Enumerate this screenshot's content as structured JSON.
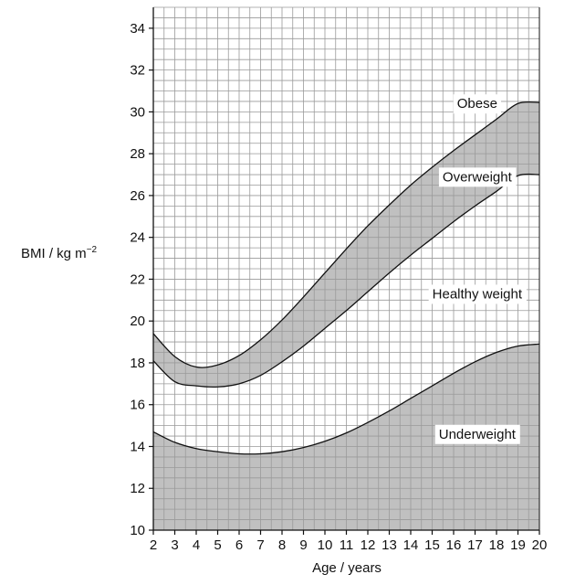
{
  "chart_data": {
    "type": "area",
    "xlabel": "Age / years",
    "ylabel": "BMI / kg m",
    "ylabel_exponent": "−2",
    "xlim": [
      2,
      20
    ],
    "ylim": [
      10,
      35
    ],
    "x_ticks": [
      2,
      3,
      4,
      5,
      6,
      7,
      8,
      9,
      10,
      11,
      12,
      13,
      14,
      15,
      16,
      17,
      18,
      19,
      20
    ],
    "y_ticks": [
      10,
      12,
      14,
      16,
      18,
      20,
      22,
      24,
      26,
      28,
      30,
      32,
      34
    ],
    "grid": true,
    "grid_minor_x": 0.5,
    "grid_minor_y": 0.5,
    "shade_color": "#c0c0c0",
    "grid_color": "#9a9a9a",
    "x": [
      2,
      3,
      4,
      5,
      6,
      7,
      8,
      9,
      10,
      11,
      12,
      13,
      14,
      15,
      16,
      17,
      18,
      19,
      20
    ],
    "series": [
      {
        "values": [
          14.7,
          14.2,
          13.9,
          13.75,
          13.65,
          13.65,
          13.75,
          13.95,
          14.25,
          14.65,
          15.15,
          15.7,
          16.3,
          16.9,
          17.5,
          18.05,
          18.5,
          18.8,
          18.9
        ]
      },
      {
        "values": [
          18.1,
          17.1,
          16.9,
          16.85,
          17.0,
          17.4,
          18.05,
          18.8,
          19.65,
          20.5,
          21.4,
          22.3,
          23.15,
          23.95,
          24.75,
          25.5,
          26.2,
          26.95,
          27.0
        ]
      },
      {
        "values": [
          19.4,
          18.3,
          17.8,
          17.9,
          18.35,
          19.1,
          20.05,
          21.15,
          22.3,
          23.45,
          24.55,
          25.55,
          26.5,
          27.35,
          28.15,
          28.9,
          29.65,
          30.4,
          30.45
        ]
      }
    ],
    "annotations": [
      {
        "text": "Obese",
        "x": 17.1,
        "y": 30.4
      },
      {
        "text": "Overweight",
        "x": 17.1,
        "y": 26.9
      },
      {
        "text": "Healthy weight",
        "x": 17.1,
        "y": 21.3
      },
      {
        "text": "Underweight",
        "x": 17.1,
        "y": 14.6
      }
    ]
  }
}
